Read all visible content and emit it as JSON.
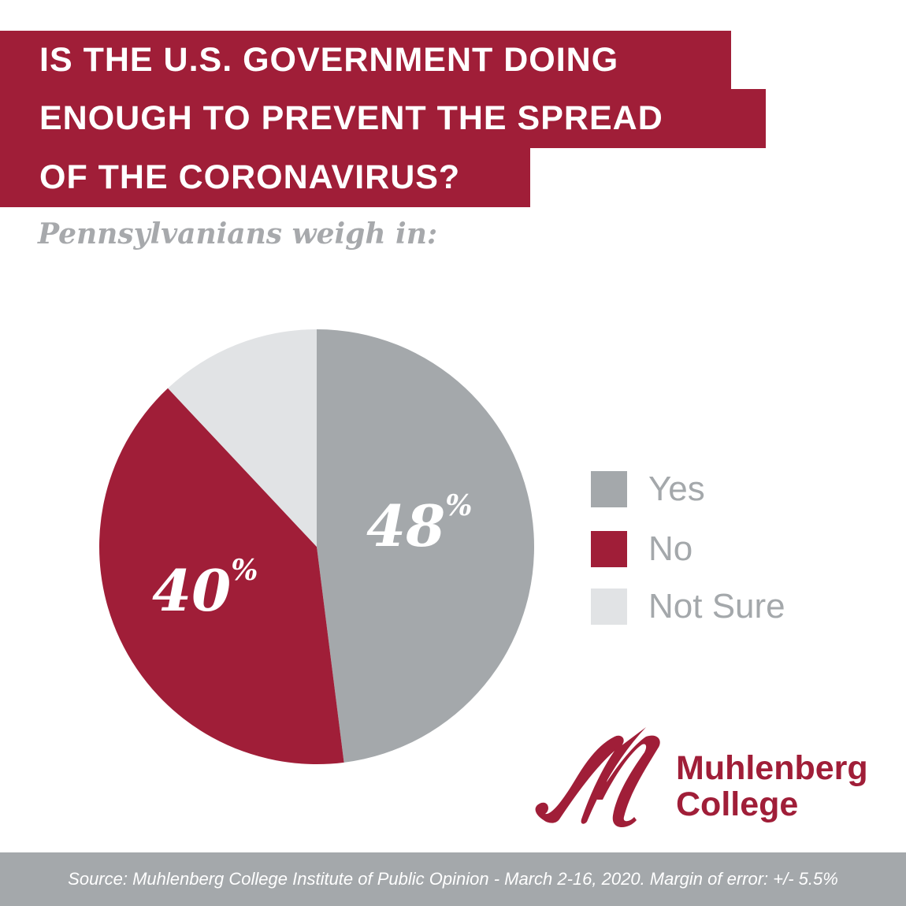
{
  "title_lines": [
    "IS THE U.S. GOVERNMENT DOING",
    "ENOUGH TO PREVENT THE SPREAD",
    "OF THE CORONAVIRUS?"
  ],
  "subtitle": "Pennsylvanians weigh in:",
  "chart_data": {
    "type": "pie",
    "title": "Is the U.S. government doing enough to prevent the spread of the coronavirus?",
    "categories": [
      "Yes",
      "No",
      "Not Sure"
    ],
    "values": [
      48,
      40,
      12
    ],
    "colors": [
      "#a4a8ab",
      "#a01e38",
      "#e1e3e5"
    ],
    "data_labels": {
      "yes_value": "48",
      "no_value": "40",
      "percent": "%"
    },
    "legend_position": "right"
  },
  "logo": {
    "line1": "Muhlenberg",
    "line2": "College",
    "color": "#a01e38"
  },
  "footer": "Source: Muhlenberg College Institute of Public Opinion - March 2-16, 2020. Margin of error: +/- 5.5%"
}
